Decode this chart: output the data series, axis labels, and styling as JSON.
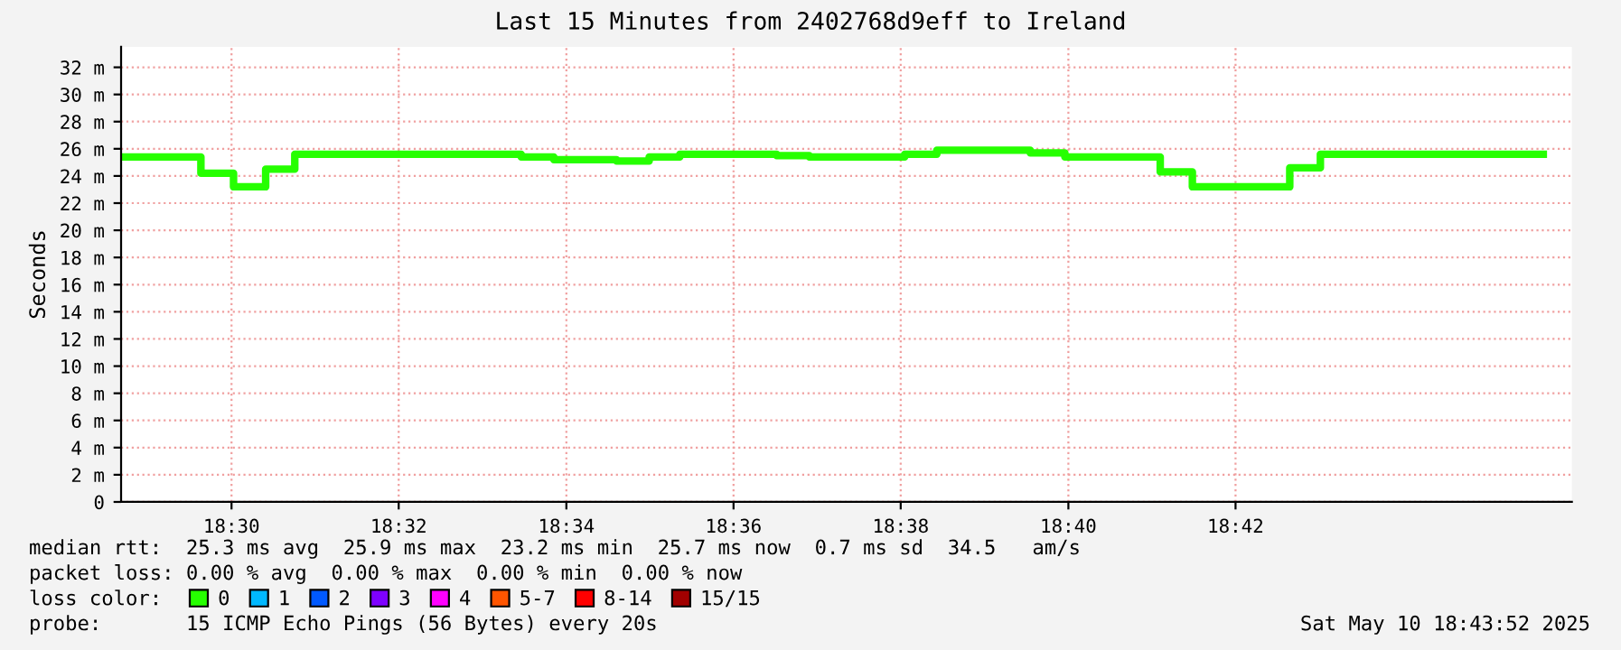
{
  "chart_data": {
    "type": "step",
    "title": "Last 15 Minutes from 2402768d9eff to Ireland",
    "ylabel": "Seconds",
    "legend_title": "loss color:",
    "x": [
      18.4789,
      18.4939,
      18.5004,
      18.5068,
      18.5126,
      18.5577,
      18.5642,
      18.5703,
      18.5767,
      18.5832,
      18.5893,
      18.6086,
      18.6151,
      18.6341,
      18.6405,
      18.6591,
      18.666,
      18.685,
      18.6914,
      18.7108,
      18.7169,
      18.7613
    ],
    "series": [
      {
        "name": "0",
        "color": "#26ff00",
        "values": [
          25.4,
          24.2,
          23.2,
          24.5,
          25.6,
          25.4,
          25.2,
          25.2,
          25.1,
          25.4,
          25.6,
          25.5,
          25.4,
          25.6,
          25.9,
          25.7,
          25.4,
          24.3,
          23.2,
          24.6,
          25.6,
          25.6
        ]
      },
      {
        "name": "1",
        "color": "#00b8ff",
        "values": [
          null,
          null,
          null,
          null,
          null,
          null,
          null,
          null,
          null,
          null,
          null,
          null,
          null,
          null,
          null,
          null,
          null,
          null,
          null,
          null,
          null,
          null
        ]
      },
      {
        "name": "2",
        "color": "#0059ff",
        "values": [
          null,
          null,
          null,
          null,
          null,
          null,
          null,
          null,
          null,
          null,
          null,
          null,
          null,
          null,
          null,
          null,
          null,
          null,
          null,
          null,
          null,
          null
        ]
      },
      {
        "name": "3",
        "color": "#7e00ff",
        "values": [
          null,
          null,
          null,
          null,
          null,
          null,
          null,
          null,
          null,
          null,
          null,
          null,
          null,
          null,
          null,
          null,
          null,
          null,
          null,
          null,
          null,
          null
        ]
      },
      {
        "name": "4",
        "color": "#ff00ff",
        "values": [
          null,
          null,
          null,
          null,
          null,
          null,
          null,
          null,
          null,
          null,
          null,
          null,
          null,
          null,
          null,
          null,
          null,
          null,
          null,
          null,
          null,
          null
        ]
      },
      {
        "name": "5-7",
        "color": "#ff5500",
        "values": [
          null,
          null,
          null,
          null,
          null,
          null,
          null,
          null,
          null,
          null,
          null,
          null,
          null,
          null,
          null,
          null,
          null,
          null,
          null,
          null,
          null,
          null
        ]
      },
      {
        "name": "8-14",
        "color": "#ff0000",
        "values": [
          null,
          null,
          null,
          null,
          null,
          null,
          null,
          null,
          null,
          null,
          null,
          null,
          null,
          null,
          null,
          null,
          null,
          null,
          null,
          null,
          null,
          null
        ]
      },
      {
        "name": "15/15",
        "color": "#a10000",
        "values": [
          null,
          null,
          null,
          null,
          null,
          null,
          null,
          null,
          null,
          null,
          null,
          null,
          null,
          null,
          null,
          null,
          null,
          null,
          null,
          null,
          null,
          null
        ]
      }
    ],
    "xlim": [
      18.478,
      18.767
    ],
    "xticks": [
      {
        "value": 18.5,
        "label": "18:30"
      },
      {
        "value": 18.5333,
        "label": "18:32"
      },
      {
        "value": 18.5667,
        "label": "18:34"
      },
      {
        "value": 18.6,
        "label": "18:36"
      },
      {
        "value": 18.6333,
        "label": "18:38"
      },
      {
        "value": 18.6667,
        "label": "18:40"
      },
      {
        "value": 18.7,
        "label": "18:42"
      }
    ],
    "ylim": [
      0,
      33.5
    ],
    "yticks": [
      0,
      {
        "value": 2,
        "label": "2 m"
      },
      {
        "value": 4,
        "label": "4 m"
      },
      {
        "value": 6,
        "label": "6 m"
      },
      {
        "value": 8,
        "label": "8 m"
      },
      {
        "value": 10,
        "label": "10 m"
      },
      {
        "value": 12,
        "label": "12 m"
      },
      {
        "value": 14,
        "label": "14 m"
      },
      {
        "value": 16,
        "label": "16 m"
      },
      {
        "value": 18,
        "label": "18 m"
      },
      {
        "value": 20,
        "label": "20 m"
      },
      {
        "value": 22,
        "label": "22 m"
      },
      {
        "value": 24,
        "label": "24 m"
      },
      {
        "value": 26,
        "label": "26 m"
      },
      {
        "value": 28,
        "label": "28 m"
      },
      {
        "value": 30,
        "label": "30 m"
      },
      {
        "value": 32,
        "label": "32 m"
      }
    ],
    "grid": true,
    "legend": "bottom",
    "annotations": [
      "median rtt:  25.3 ms avg  25.9 ms max  23.2 ms min  25.7 ms now  0.7 ms sd  34.5   am/s",
      "packet loss: 0.00 % avg  0.00 % max  0.00 % min  0.00 % now",
      "probe:       15 ICMP Echo Pings (56 Bytes) every 20s",
      "Sat May 10 18:43:52 2025"
    ]
  }
}
